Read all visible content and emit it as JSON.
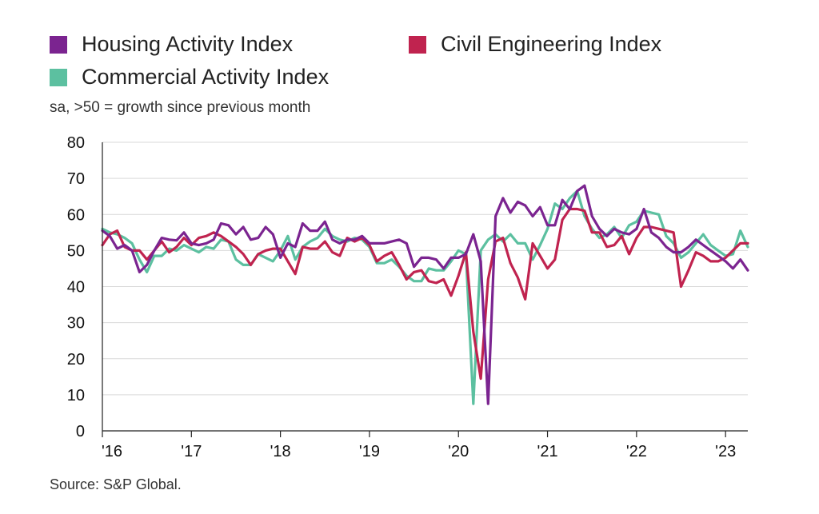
{
  "legend": [
    {
      "label": "Housing Activity Index",
      "color": "#7b2490"
    },
    {
      "label": "Civil Engineering Index",
      "color": "#c0234f"
    },
    {
      "label": "Commercial Activity Index",
      "color": "#5cc0a0"
    }
  ],
  "subtitle": "sa, >50 = growth since previous month",
  "source": "Source: S&P Global.",
  "chart_data": {
    "type": "line",
    "x_start": "2016-01",
    "x_ticks": [
      "'16",
      "'17",
      "'18",
      "'19",
      "'20",
      "'21",
      "'22",
      "'23"
    ],
    "y_ticks": [
      "0",
      "10",
      "20",
      "30",
      "40",
      "50",
      "60",
      "70",
      "80"
    ],
    "ylim": [
      0,
      80
    ],
    "grid": true,
    "legend_position": "top",
    "series": [
      {
        "name": "Housing Activity Index",
        "color": "#7b2490",
        "values": [
          55.5,
          54,
          50.5,
          51.5,
          50,
          44,
          46,
          50,
          53.5,
          53,
          52.8,
          55,
          52,
          51.5,
          52,
          53,
          57.5,
          57,
          54.5,
          56.5,
          53,
          53.5,
          56.5,
          54.5,
          48,
          52,
          51,
          57.5,
          55.5,
          55.5,
          58,
          53,
          52,
          53,
          53,
          54,
          52,
          52,
          52,
          52.5,
          53,
          52,
          45.5,
          48,
          48,
          47.5,
          45,
          48,
          48,
          49,
          54.5,
          47,
          7.5,
          59.5,
          64.5,
          60.5,
          63.5,
          62.5,
          59.5,
          62,
          57,
          57,
          64,
          61.5,
          66.5,
          68,
          59.5,
          56,
          54,
          56,
          55,
          54.5,
          56,
          61.5,
          55,
          53.5,
          51,
          49.5,
          49.5,
          51,
          53,
          51.5,
          50,
          48.5,
          47,
          45,
          47.5,
          44.5
        ]
      },
      {
        "name": "Civil Engineering Index",
        "color": "#c0234f",
        "values": [
          51.5,
          54.5,
          55.5,
          51,
          50,
          50,
          47.5,
          50,
          52.5,
          49.5,
          51,
          53.5,
          51.5,
          53.5,
          54,
          55,
          54,
          52.5,
          51,
          49,
          46,
          49,
          50,
          50.5,
          50.5,
          47,
          43.5,
          51,
          50.5,
          50.5,
          52.5,
          49.5,
          48.5,
          53.5,
          52.5,
          53.5,
          51.5,
          47,
          48.5,
          49.5,
          46,
          42,
          44,
          44.5,
          41.5,
          41,
          42,
          37.5,
          43,
          49.5,
          27.5,
          14.5,
          42,
          52.5,
          53.5,
          46.5,
          42.5,
          36.5,
          52,
          48.5,
          45,
          47.5,
          58.5,
          61.5,
          61.5,
          61,
          55,
          55,
          51,
          51.5,
          54,
          49,
          53.5,
          56.5,
          56.5,
          56,
          55.5,
          55,
          40,
          44.5,
          49.5,
          48.5,
          47,
          47,
          48,
          50,
          52,
          52
        ]
      },
      {
        "name": "Commercial Activity Index",
        "color": "#5cc0a0",
        "values": [
          56,
          55,
          54.5,
          53.5,
          52,
          47.5,
          44,
          48.5,
          48.5,
          50.5,
          50,
          51.5,
          50.5,
          49.5,
          51,
          50.5,
          53,
          52.5,
          47.5,
          46,
          46,
          49,
          48,
          47,
          50,
          54,
          47.5,
          51,
          52.5,
          53.5,
          56,
          54,
          53,
          52.5,
          53.5,
          53,
          51,
          46.5,
          46.5,
          47.5,
          45.5,
          43,
          41.5,
          41.5,
          45,
          44.5,
          44.5,
          47,
          50,
          49,
          7.5,
          50,
          53,
          54.5,
          52.5,
          54.5,
          52,
          52,
          47.5,
          51.5,
          56,
          63,
          61.5,
          64.5,
          66.5,
          59.5,
          56,
          53.5,
          54.5,
          56.5,
          53.5,
          57,
          58,
          61,
          60.5,
          60,
          54,
          52,
          48,
          49.5,
          52,
          54.5,
          51.5,
          50,
          48.5,
          49,
          55.5,
          51
        ]
      }
    ]
  }
}
